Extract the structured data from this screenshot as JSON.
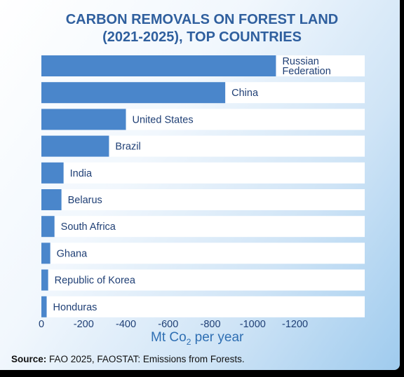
{
  "title_line1": "CARBON REMOVALS ON FOREST LAND",
  "title_line2": "(2021-2025), TOP COUNTRIES",
  "source_label": "Source:",
  "source_text": "FAO 2025, FAOSTAT: Emissions from Forests.",
  "colors": {
    "title": "#2f5f9e",
    "bar": "#4a86cb",
    "track": "#ffffff",
    "unit": "#2f6fb3"
  },
  "chart_data": {
    "type": "bar",
    "orientation": "horizontal",
    "title": "CARBON REMOVALS ON FOREST LAND (2021-2025), TOP COUNTRIES",
    "xlabel": "Mt Co2 per year",
    "xlabel_parts": [
      "Mt Co",
      "2",
      " per year"
    ],
    "ylabel": "",
    "categories": [
      "Russian Federation",
      "China",
      "United States",
      "Brazil",
      "India",
      "Belarus",
      "South Africa",
      "Ghana",
      "Republic of Korea",
      "Honduras"
    ],
    "category_lines": [
      [
        "Russian",
        "Federation"
      ],
      [
        "China"
      ],
      [
        "United States"
      ],
      [
        "Brazil"
      ],
      [
        "India"
      ],
      [
        "Belarus"
      ],
      [
        "South Africa"
      ],
      [
        "Ghana"
      ],
      [
        "Republic of Korea"
      ],
      [
        "Honduras"
      ]
    ],
    "values": [
      -1110,
      -870,
      -400,
      -320,
      -105,
      -95,
      -62,
      -42,
      -32,
      -25
    ],
    "xlim": [
      0,
      -1530
    ],
    "xticks": [
      0,
      -200,
      -400,
      -600,
      -800,
      -1000,
      -1200
    ],
    "xtick_labels": [
      "0",
      "-200",
      "-400",
      "-600",
      "-800",
      "-1000",
      "-1200"
    ],
    "grid": false,
    "legend": "none"
  }
}
